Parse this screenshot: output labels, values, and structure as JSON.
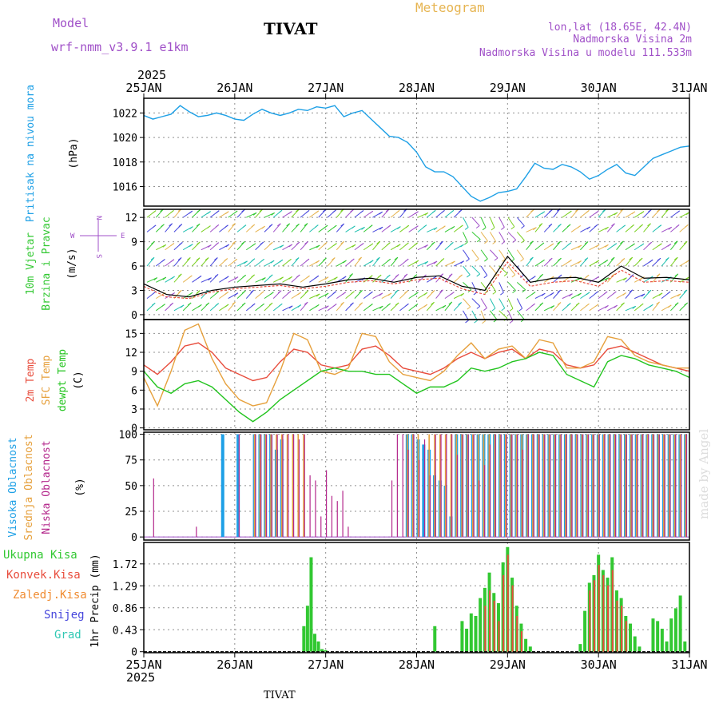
{
  "header": {
    "model_label": "Model",
    "model_name": "wrf-nmm_v3.9.1 e1km",
    "station": "TIVAT",
    "title": "Meteogram",
    "lonlat": "lon,lat (18.65E, 42.4N)",
    "elevation": "Nadmorska Visina 2m",
    "model_elevation": "Nadmorska Visina u modelu 111.533m",
    "year_top": "2025",
    "year_bottom": "2025",
    "footer_station": "TIVAT",
    "credit": "made by Angel"
  },
  "colors": {
    "pressure": "#1ea0e6",
    "temp2m": "#e84c3c",
    "sfc": "#e6a03c",
    "dewpt": "#22c41e",
    "wind": "#32c832",
    "gust": "#000000",
    "high_cloud": "#1ea0e6",
    "mid_cloud": "#e6a03c",
    "low_cloud": "#b4288c",
    "total_precip": "#32c832",
    "convective": "#e84c3c",
    "frozen": "#f08c32",
    "snow": "#4646dc",
    "graupel": "#32c8b4",
    "purple": "#a050c8",
    "gold": "#e6b450"
  },
  "dates": [
    "25JAN",
    "26JAN",
    "27JAN",
    "28JAN",
    "29JAN",
    "30JAN",
    "31JAN"
  ],
  "chart_data": [
    {
      "type": "line",
      "panel": "pressure",
      "ylabel": "Pritisak na nivou mora",
      "unit": "(hPa)",
      "yticks": [
        "1022",
        "1020",
        "1018",
        "1016"
      ],
      "ylim": [
        1014.4,
        1023.2
      ],
      "x": [
        0,
        0.1,
        0.2,
        0.3,
        0.4,
        0.5,
        0.6,
        0.7,
        0.8,
        0.9,
        1.0,
        1.1,
        1.2,
        1.3,
        1.4,
        1.5,
        1.6,
        1.7,
        1.8,
        1.9,
        2.0,
        2.1,
        2.2,
        2.3,
        2.4,
        2.5,
        2.6,
        2.7,
        2.8,
        2.9,
        3.0,
        3.1,
        3.2,
        3.3,
        3.4,
        3.5,
        3.6,
        3.7,
        3.8,
        3.9,
        4.0,
        4.1,
        4.2,
        4.3,
        4.4,
        4.5,
        4.6,
        4.7,
        4.8,
        4.9,
        5.0,
        5.1,
        5.2,
        5.3,
        5.4,
        5.5,
        5.6,
        5.7,
        5.8,
        5.9,
        6.0
      ],
      "series": [
        {
          "values": [
            1021.8,
            1021.5,
            1021.7,
            1021.9,
            1022.6,
            1022.1,
            1021.7,
            1021.8,
            1022.0,
            1021.8,
            1021.5,
            1021.4,
            1021.9,
            1022.3,
            1022.0,
            1021.8,
            1022.0,
            1022.3,
            1022.2,
            1022.5,
            1022.4,
            1022.6,
            1021.7,
            1022.0,
            1022.2,
            1021.5,
            1020.8,
            1020.1,
            1020.0,
            1019.6,
            1018.8,
            1017.6,
            1017.2,
            1017.2,
            1016.8,
            1016.0,
            1015.2,
            1014.8,
            1015.1,
            1015.5,
            1015.6,
            1015.8,
            1016.8,
            1017.9,
            1017.5,
            1017.4,
            1017.8,
            1017.6,
            1017.2,
            1016.6,
            1016.9,
            1017.4,
            1017.8,
            1017.1,
            1016.9,
            1017.6,
            1018.3,
            1018.6,
            1018.9,
            1019.2,
            1019.3
          ]
        }
      ]
    },
    {
      "type": "line",
      "panel": "wind",
      "ylabel": "10m Vjetar",
      "ylabel2": "Brzina i Pravac",
      "unit": "(m/s)",
      "compass": {
        "n": "N",
        "w": "W",
        "e": "E",
        "s": "S"
      },
      "yticks": [
        "12",
        "9",
        "6",
        "3",
        "0"
      ],
      "ylim": [
        -0.6,
        13.0
      ],
      "x": [
        0,
        0.25,
        0.5,
        0.75,
        1.0,
        1.25,
        1.5,
        1.75,
        2.0,
        2.25,
        2.5,
        2.75,
        3.0,
        3.25,
        3.5,
        3.75,
        4.0,
        4.25,
        4.5,
        4.75,
        5.0,
        5.25,
        5.5,
        5.75,
        6.0
      ],
      "series": [
        {
          "name": "10m",
          "values": [
            3.5,
            2.2,
            2.0,
            2.8,
            3.2,
            3.4,
            3.6,
            3.2,
            3.5,
            4.0,
            4.2,
            3.8,
            4.3,
            4.5,
            3.2,
            2.5,
            6.5,
            3.5,
            4.0,
            4.2,
            3.5,
            5.5,
            4.0,
            4.2,
            4.0
          ]
        },
        {
          "name": "gust",
          "values": [
            3.8,
            2.5,
            2.2,
            3.0,
            3.4,
            3.6,
            3.8,
            3.4,
            3.8,
            4.3,
            4.5,
            4.0,
            4.6,
            4.8,
            3.5,
            3.0,
            7.2,
            4.0,
            4.5,
            4.6,
            4.0,
            6.0,
            4.5,
            4.6,
            4.3
          ]
        }
      ]
    },
    {
      "type": "line",
      "panel": "temperature",
      "ylabel": "2m Temp",
      "ylabel2": "SFC Temp",
      "ylabel3": "dewpt Temp",
      "unit": "(C)",
      "yticks": [
        "15",
        "12",
        "9",
        "6",
        "3",
        "0"
      ],
      "ylim": [
        -0.3,
        17.2
      ],
      "x": [
        0,
        0.15,
        0.3,
        0.45,
        0.6,
        0.75,
        0.9,
        1.05,
        1.2,
        1.35,
        1.5,
        1.65,
        1.8,
        1.95,
        2.1,
        2.25,
        2.4,
        2.55,
        2.7,
        2.85,
        3.0,
        3.15,
        3.3,
        3.45,
        3.6,
        3.75,
        3.9,
        4.05,
        4.2,
        4.35,
        4.5,
        4.65,
        4.8,
        4.95,
        5.1,
        5.25,
        5.4,
        5.55,
        5.7,
        5.85,
        6.0
      ],
      "series": [
        {
          "name": "2m Temp",
          "values": [
            10.0,
            8.5,
            10.5,
            13.0,
            13.5,
            12.0,
            9.5,
            8.5,
            7.5,
            8.0,
            10.5,
            12.5,
            12.0,
            10.0,
            9.5,
            10.0,
            12.5,
            13.0,
            11.5,
            9.5,
            9.0,
            8.5,
            9.5,
            11.0,
            12.0,
            11.0,
            12.0,
            12.5,
            11.0,
            12.5,
            12.0,
            10.0,
            9.5,
            10.0,
            12.5,
            13.0,
            12.0,
            11.0,
            10.0,
            9.5,
            9.0
          ]
        },
        {
          "name": "SFC Temp",
          "values": [
            8.0,
            3.5,
            9.0,
            15.5,
            16.5,
            11.0,
            7.0,
            4.5,
            3.5,
            4.0,
            9.0,
            15.0,
            14.0,
            9.0,
            8.5,
            9.5,
            15.0,
            14.5,
            10.5,
            8.5,
            8.0,
            7.5,
            9.0,
            11.5,
            13.5,
            11.0,
            12.5,
            13.0,
            11.0,
            14.0,
            13.5,
            9.5,
            9.5,
            10.5,
            14.5,
            14.0,
            11.5,
            10.5,
            10.0,
            9.5,
            9.5
          ]
        },
        {
          "name": "dewpt Temp",
          "values": [
            9.0,
            6.5,
            5.5,
            7.0,
            7.5,
            6.5,
            4.5,
            2.5,
            1.0,
            2.5,
            4.5,
            6.0,
            7.5,
            9.0,
            9.5,
            9.0,
            9.0,
            8.5,
            8.5,
            7.0,
            5.5,
            6.5,
            6.5,
            7.5,
            9.5,
            9.0,
            9.5,
            10.5,
            11.0,
            12.0,
            11.5,
            8.5,
            7.5,
            6.5,
            10.5,
            11.5,
            11.0,
            10.0,
            9.5,
            9.0,
            8.0
          ]
        }
      ]
    },
    {
      "type": "bar",
      "panel": "clouds",
      "ylabel": "Visoka Oblacnost",
      "ylabel2": "Srednja Oblacnost",
      "ylabel3": "Niska Oblacnost",
      "unit": "(%)",
      "yticks": [
        "100",
        "75",
        "50",
        "25",
        "0"
      ],
      "ylim": [
        -3,
        102
      ],
      "x": [
        0.08,
        0.55,
        0.85,
        1.02,
        1.2,
        1.26,
        1.32,
        1.38,
        1.44,
        1.5,
        1.56,
        1.62,
        1.68,
        1.74,
        1.8,
        1.86,
        1.92,
        1.98,
        2.04,
        2.1,
        2.16,
        2.22,
        2.28,
        2.34,
        2.4,
        2.46,
        2.52,
        2.58,
        2.64,
        2.7,
        2.76,
        2.82,
        2.88,
        2.94,
        3.0,
        3.06,
        3.12,
        3.18,
        3.24,
        3.3,
        3.36,
        3.42,
        3.48,
        3.54,
        3.6,
        3.66,
        3.72,
        3.78,
        3.84,
        3.9,
        3.96,
        4.02,
        4.08,
        4.14,
        4.2,
        4.26,
        4.32,
        4.38,
        4.44,
        4.5,
        4.56,
        4.62,
        4.68,
        4.74,
        4.8,
        4.86,
        4.92,
        4.98,
        5.04,
        5.1,
        5.16,
        5.22,
        5.28,
        5.34,
        5.4,
        5.46,
        5.52,
        5.58,
        5.64,
        5.7,
        5.76,
        5.82,
        5.88,
        5.94
      ],
      "series": [
        {
          "name": "Visoka Oblacnost",
          "values": [
            0,
            0,
            100,
            100,
            100,
            100,
            100,
            100,
            85,
            95,
            0,
            0,
            0,
            0,
            0,
            0,
            0,
            0,
            0,
            0,
            0,
            0,
            0,
            0,
            0,
            0,
            0,
            0,
            0,
            0,
            0,
            0,
            100,
            100,
            95,
            90,
            85,
            60,
            55,
            50,
            20,
            100,
            100,
            100,
            100,
            100,
            100,
            100,
            100,
            100,
            100,
            100,
            100,
            100,
            100,
            100,
            100,
            100,
            100,
            100,
            100,
            100,
            100,
            100,
            100,
            100,
            100,
            100,
            100,
            100,
            100,
            100,
            100,
            100,
            100,
            100,
            100,
            100,
            100,
            100,
            100,
            100,
            100,
            100
          ]
        },
        {
          "name": "Srednja Oblacnost",
          "values": [
            0,
            0,
            0,
            0,
            100,
            100,
            100,
            100,
            100,
            100,
            100,
            100,
            100,
            100,
            0,
            0,
            0,
            0,
            0,
            0,
            0,
            0,
            0,
            0,
            0,
            0,
            0,
            0,
            0,
            0,
            0,
            0,
            100,
            100,
            100,
            0,
            100,
            100,
            100,
            100,
            100,
            100,
            100,
            100,
            100,
            100,
            100,
            100,
            100,
            100,
            100,
            100,
            100,
            100,
            100,
            100,
            100,
            100,
            100,
            100,
            100,
            100,
            100,
            100,
            100,
            100,
            100,
            100,
            100,
            100,
            100,
            100,
            100,
            100,
            100,
            100,
            100,
            100,
            100,
            100,
            100,
            100,
            100,
            100
          ]
        },
        {
          "name": "Niska Oblacnost",
          "values": [
            57,
            10,
            0,
            100,
            100,
            100,
            100,
            100,
            100,
            100,
            100,
            100,
            95,
            100,
            60,
            55,
            20,
            65,
            40,
            35,
            45,
            10,
            0,
            0,
            0,
            0,
            0,
            0,
            0,
            55,
            100,
            100,
            85,
            100,
            75,
            95,
            60,
            100,
            100,
            100,
            100,
            80,
            100,
            100,
            100,
            55,
            70,
            90,
            100,
            100,
            100,
            100,
            100,
            85,
            100,
            100,
            100,
            100,
            100,
            100,
            100,
            100,
            100,
            100,
            100,
            100,
            100,
            100,
            100,
            100,
            100,
            100,
            100,
            100,
            100,
            100,
            100,
            100,
            100,
            100,
            100,
            100,
            100,
            100
          ]
        }
      ]
    },
    {
      "type": "bar",
      "panel": "precipitation",
      "ylabel": "1hr Precip",
      "unit": "(mm)",
      "legend": [
        "Ukupna Kisa",
        "Konvek.Kisa",
        "Zaledj.Kisa",
        "Snijeg",
        "Grad"
      ],
      "yticks": [
        "1.72",
        "1.29",
        "0.86",
        "0.43",
        "0"
      ],
      "ylim": [
        -0.02,
        2.14
      ],
      "x": [
        1.76,
        1.8,
        1.84,
        1.88,
        1.92,
        1.96,
        2.0,
        3.2,
        3.5,
        3.55,
        3.6,
        3.65,
        3.7,
        3.75,
        3.8,
        3.85,
        3.9,
        3.95,
        4.0,
        4.05,
        4.1,
        4.15,
        4.2,
        4.25,
        4.8,
        4.85,
        4.9,
        4.95,
        5.0,
        5.05,
        5.1,
        5.15,
        5.2,
        5.25,
        5.3,
        5.35,
        5.4,
        5.45,
        5.6,
        5.65,
        5.7,
        5.75,
        5.8,
        5.85,
        5.9,
        5.95
      ],
      "series": [
        {
          "name": "Ukupna Kisa",
          "values": [
            0.5,
            0.9,
            1.85,
            0.35,
            0.2,
            0.05,
            0.03,
            0.5,
            0.6,
            0.45,
            0.75,
            0.7,
            1.05,
            1.25,
            1.55,
            1.15,
            0.95,
            1.75,
            2.05,
            1.45,
            0.9,
            0.55,
            0.25,
            0.1,
            0.15,
            0.8,
            1.35,
            1.5,
            1.9,
            1.6,
            1.45,
            1.85,
            1.2,
            1.05,
            0.7,
            0.55,
            0.3,
            0.1,
            0.65,
            0.6,
            0.45,
            0.2,
            0.65,
            0.85,
            1.1,
            0.2
          ]
        },
        {
          "name": "Konvek.Kisa",
          "values": [
            0,
            0,
            0,
            0,
            0,
            0,
            0,
            0,
            0,
            0,
            0,
            0,
            0,
            0.9,
            1.2,
            1.0,
            0.6,
            1.5,
            1.9,
            1.3,
            0.7,
            0.4,
            0,
            0,
            0,
            0,
            1.2,
            1.4,
            1.7,
            1.5,
            1.3,
            1.6,
            1.0,
            0.9,
            0.6,
            0,
            0,
            0,
            0,
            0,
            0,
            0,
            0,
            0,
            0,
            0
          ]
        }
      ]
    }
  ]
}
